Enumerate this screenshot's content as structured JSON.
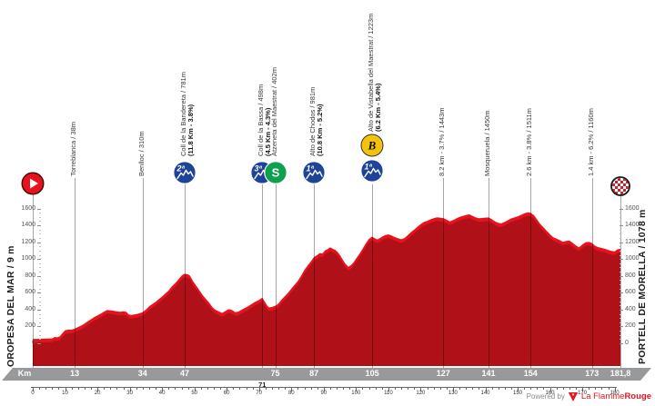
{
  "axis_left_title": "OROPESA DEL MAR / 9 m",
  "axis_right_title": "PORTELL DE MORELLA / 1078 m",
  "footer": {
    "powered_by": "Powered by",
    "brand_regular": "La Flamme",
    "brand_bold": "Rouge"
  },
  "colors": {
    "profile_fill": "#b01119",
    "profile_edge": "#e8121d",
    "band_gray": "#98999b",
    "category_blue": "#1d4496",
    "sprint_green": "#0da04e",
    "bonus_yellow": "#f4c20d",
    "start_red": "#e8121d",
    "finish_check_red": "#d2202a",
    "marker_line_gray": "#a6a6a6"
  },
  "icon_labels": {
    "cat1": "1ª",
    "cat2": "2ª",
    "cat3": "3ª",
    "sprint": "S",
    "bonus": "B"
  },
  "chart_data": {
    "type": "area",
    "x_unit": "Km",
    "x_range": [
      0,
      181.8
    ],
    "y_range": [
      0,
      1600
    ],
    "y_ticks": [
      0,
      200,
      400,
      600,
      800,
      1000,
      1200,
      1400,
      1600
    ],
    "ruler_ticks": [
      0,
      10,
      20,
      30,
      40,
      50,
      60,
      70,
      80,
      90,
      100,
      110,
      120,
      130,
      140,
      150,
      160,
      170,
      180
    ],
    "band_labels": [
      {
        "text": "Km",
        "km": null
      },
      {
        "text": "13",
        "km": 13
      },
      {
        "text": "34",
        "km": 34
      },
      {
        "text": "47",
        "km": 47
      },
      {
        "text": "71",
        "km": 71,
        "below": true
      },
      {
        "text": "75",
        "km": 75
      },
      {
        "text": "87",
        "km": 87
      },
      {
        "text": "105",
        "km": 105
      },
      {
        "text": "127",
        "km": 127
      },
      {
        "text": "141",
        "km": 141
      },
      {
        "text": "154",
        "km": 154
      },
      {
        "text": "173",
        "km": 173
      },
      {
        "text": "181,8",
        "km": 181.8
      }
    ],
    "markers": [
      {
        "km": 0,
        "type": "start"
      },
      {
        "km": 13,
        "label": "Torreblanca / 38m"
      },
      {
        "km": 34,
        "label": "Benlloc / 310m"
      },
      {
        "km": 47,
        "label": "Coll de la Bandereta / 781m",
        "detail": "(11.8 Km - 3.8%)",
        "icons": [
          "cat2"
        ]
      },
      {
        "km": 71,
        "label": "Coll de la Bassa / 498m",
        "detail": "(4.5 Km - 4.3%)",
        "icons": [
          "cat3"
        ]
      },
      {
        "km": 75,
        "label": "Atzeneta del Maestrat / 402m",
        "icons": [
          "sprint"
        ]
      },
      {
        "km": 87,
        "label": "Alto de Chodos / 981m",
        "detail": "(10.8 Km - 5.2%)",
        "icons": [
          "cat1"
        ]
      },
      {
        "km": 105,
        "label": "Alto de Vistabella del Maestrat / 1223m",
        "detail": "(6.2 Km - 5.4%)",
        "icons": [
          "bonus",
          "cat1"
        ]
      },
      {
        "km": 127,
        "label": "8.2 km - 3.7% / 1443m"
      },
      {
        "km": 141,
        "label": "Mosqueruela / 1450m"
      },
      {
        "km": 154,
        "label": "2.6 km - 3.8% / 1511m"
      },
      {
        "km": 173,
        "label": "1.4 km - 6.2% / 1160m"
      },
      {
        "km": 181.8,
        "type": "finish"
      }
    ],
    "profile": [
      [
        0,
        9
      ],
      [
        3,
        12
      ],
      [
        6,
        15
      ],
      [
        6.8,
        32
      ],
      [
        7.6,
        28
      ],
      [
        8.4,
        40
      ],
      [
        9.2,
        80
      ],
      [
        10,
        112
      ],
      [
        11,
        120
      ],
      [
        12,
        118
      ],
      [
        13,
        132
      ],
      [
        14,
        150
      ],
      [
        15,
        168
      ],
      [
        16,
        192
      ],
      [
        17,
        218
      ],
      [
        18,
        242
      ],
      [
        19,
        268
      ],
      [
        20,
        288
      ],
      [
        21,
        308
      ],
      [
        22,
        332
      ],
      [
        23,
        352
      ],
      [
        24,
        348
      ],
      [
        25,
        344
      ],
      [
        26,
        336
      ],
      [
        27,
        332
      ],
      [
        28,
        336
      ],
      [
        29,
        330
      ],
      [
        29.6,
        302
      ],
      [
        30.4,
        294
      ],
      [
        31.4,
        300
      ],
      [
        32.6,
        308
      ],
      [
        34,
        326
      ],
      [
        35,
        358
      ],
      [
        36,
        396
      ],
      [
        37,
        422
      ],
      [
        38,
        448
      ],
      [
        39,
        482
      ],
      [
        40,
        512
      ],
      [
        41,
        548
      ],
      [
        42,
        582
      ],
      [
        43,
        632
      ],
      [
        44,
        668
      ],
      [
        45,
        712
      ],
      [
        46,
        758
      ],
      [
        46.8,
        781
      ],
      [
        47.8,
        778
      ],
      [
        48.6,
        762
      ],
      [
        49.6,
        695
      ],
      [
        50.6,
        640
      ],
      [
        51.6,
        585
      ],
      [
        52.6,
        528
      ],
      [
        53.6,
        482
      ],
      [
        54.6,
        438
      ],
      [
        55.6,
        385
      ],
      [
        56.4,
        358
      ],
      [
        57.4,
        338
      ],
      [
        58.6,
        318
      ],
      [
        59.6,
        340
      ],
      [
        60.6,
        362
      ],
      [
        61.6,
        352
      ],
      [
        62.6,
        328
      ],
      [
        63.6,
        333
      ],
      [
        64.6,
        356
      ],
      [
        65.6,
        376
      ],
      [
        66.6,
        396
      ],
      [
        67.6,
        420
      ],
      [
        68.6,
        446
      ],
      [
        69.8,
        468
      ],
      [
        71,
        498
      ],
      [
        71.8,
        452
      ],
      [
        72.6,
        400
      ],
      [
        73.2,
        383
      ],
      [
        74.2,
        392
      ],
      [
        75,
        402
      ],
      [
        76,
        430
      ],
      [
        77,
        478
      ],
      [
        78,
        518
      ],
      [
        79,
        558
      ],
      [
        80,
        608
      ],
      [
        81,
        652
      ],
      [
        82,
        698
      ],
      [
        83,
        758
      ],
      [
        84,
        828
      ],
      [
        85,
        878
      ],
      [
        86,
        928
      ],
      [
        87,
        981
      ],
      [
        88,
        1004
      ],
      [
        88.8,
        1028
      ],
      [
        89.6,
        1022
      ],
      [
        90.4,
        1058
      ],
      [
        91.2,
        1074
      ],
      [
        92,
        1096
      ],
      [
        92.8,
        1078
      ],
      [
        93.6,
        1066
      ],
      [
        94.4,
        1038
      ],
      [
        95.2,
        996
      ],
      [
        96,
        944
      ],
      [
        96.8,
        896
      ],
      [
        97.6,
        866
      ],
      [
        98.4,
        884
      ],
      [
        99.2,
        916
      ],
      [
        100,
        962
      ],
      [
        101,
        1016
      ],
      [
        102,
        1076
      ],
      [
        103,
        1142
      ],
      [
        104,
        1196
      ],
      [
        105,
        1223
      ],
      [
        105.8,
        1204
      ],
      [
        106.6,
        1190
      ],
      [
        107.4,
        1206
      ],
      [
        108.2,
        1226
      ],
      [
        109,
        1240
      ],
      [
        110,
        1250
      ],
      [
        111,
        1236
      ],
      [
        112,
        1218
      ],
      [
        113,
        1204
      ],
      [
        114,
        1192
      ],
      [
        115,
        1206
      ],
      [
        116,
        1240
      ],
      [
        117,
        1276
      ],
      [
        118,
        1306
      ],
      [
        119,
        1340
      ],
      [
        120,
        1370
      ],
      [
        121,
        1396
      ],
      [
        122,
        1408
      ],
      [
        123,
        1428
      ],
      [
        124,
        1440
      ],
      [
        125,
        1452
      ],
      [
        126,
        1448
      ],
      [
        127,
        1443
      ],
      [
        128,
        1424
      ],
      [
        129,
        1404
      ],
      [
        130,
        1418
      ],
      [
        131,
        1438
      ],
      [
        132,
        1456
      ],
      [
        133,
        1468
      ],
      [
        134,
        1478
      ],
      [
        135,
        1488
      ],
      [
        136,
        1470
      ],
      [
        137,
        1452
      ],
      [
        138,
        1440
      ],
      [
        139,
        1444
      ],
      [
        140,
        1448
      ],
      [
        141,
        1450
      ],
      [
        142,
        1430
      ],
      [
        143,
        1404
      ],
      [
        144,
        1386
      ],
      [
        145,
        1380
      ],
      [
        146,
        1398
      ],
      [
        147,
        1418
      ],
      [
        148,
        1438
      ],
      [
        149,
        1450
      ],
      [
        150,
        1462
      ],
      [
        151,
        1480
      ],
      [
        152,
        1498
      ],
      [
        153,
        1511
      ],
      [
        154,
        1506
      ],
      [
        155,
        1478
      ],
      [
        156,
        1428
      ],
      [
        157,
        1374
      ],
      [
        158,
        1334
      ],
      [
        159,
        1292
      ],
      [
        160,
        1252
      ],
      [
        161,
        1216
      ],
      [
        162,
        1200
      ],
      [
        163,
        1182
      ],
      [
        164,
        1162
      ],
      [
        165,
        1172
      ],
      [
        166,
        1176
      ],
      [
        167,
        1150
      ],
      [
        168,
        1120
      ],
      [
        169,
        1096
      ],
      [
        170,
        1128
      ],
      [
        171,
        1155
      ],
      [
        172,
        1160
      ],
      [
        173,
        1148
      ],
      [
        174,
        1112
      ],
      [
        175,
        1098
      ],
      [
        176,
        1088
      ],
      [
        177,
        1078
      ],
      [
        178,
        1066
      ],
      [
        179,
        1054
      ],
      [
        180,
        1048
      ],
      [
        180.9,
        1072
      ],
      [
        181.8,
        1078
      ]
    ]
  }
}
